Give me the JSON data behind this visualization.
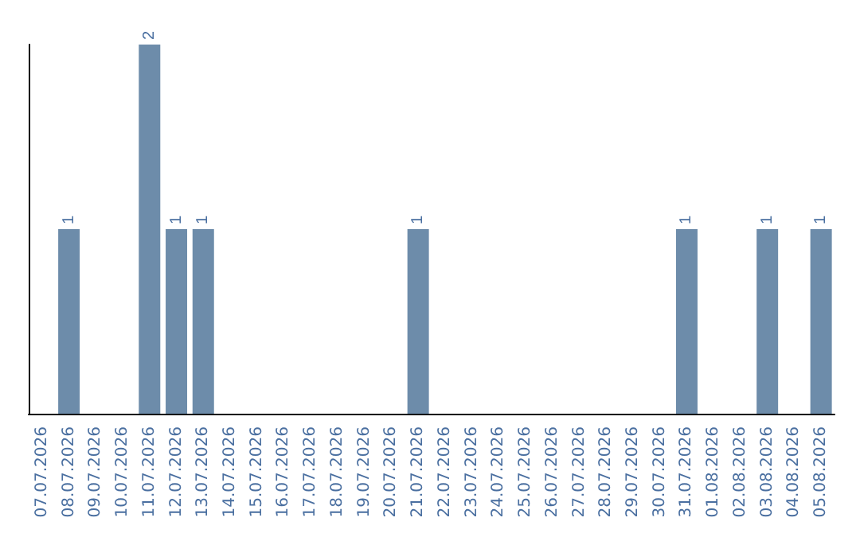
{
  "chart_data": {
    "type": "bar",
    "categories": [
      "07.07.2026",
      "08.07.2026",
      "09.07.2026",
      "10.07.2026",
      "11.07.2026",
      "12.07.2026",
      "13.07.2026",
      "14.07.2026",
      "15.07.2026",
      "16.07.2026",
      "17.07.2026",
      "18.07.2026",
      "19.07.2026",
      "20.07.2026",
      "21.07.2026",
      "22.07.2026",
      "23.07.2026",
      "24.07.2026",
      "25.07.2026",
      "26.07.2026",
      "27.07.2026",
      "28.07.2026",
      "29.07.2026",
      "30.07.2026",
      "31.07.2026",
      "01.08.2026",
      "02.08.2026",
      "03.08.2026",
      "04.08.2026",
      "05.08.2026"
    ],
    "values": [
      0,
      1,
      0,
      0,
      2,
      1,
      1,
      0,
      0,
      0,
      0,
      0,
      0,
      0,
      1,
      0,
      0,
      0,
      0,
      0,
      0,
      0,
      0,
      0,
      1,
      0,
      0,
      1,
      0,
      1
    ],
    "value_labels": [
      null,
      "1",
      null,
      null,
      "2",
      "1",
      "1",
      null,
      null,
      null,
      null,
      null,
      null,
      null,
      "1",
      null,
      null,
      null,
      null,
      null,
      null,
      null,
      null,
      null,
      "1",
      null,
      null,
      "1",
      null,
      "1"
    ],
    "color": "#6d8caa",
    "grid": false,
    "tick_labels": "x"
  }
}
